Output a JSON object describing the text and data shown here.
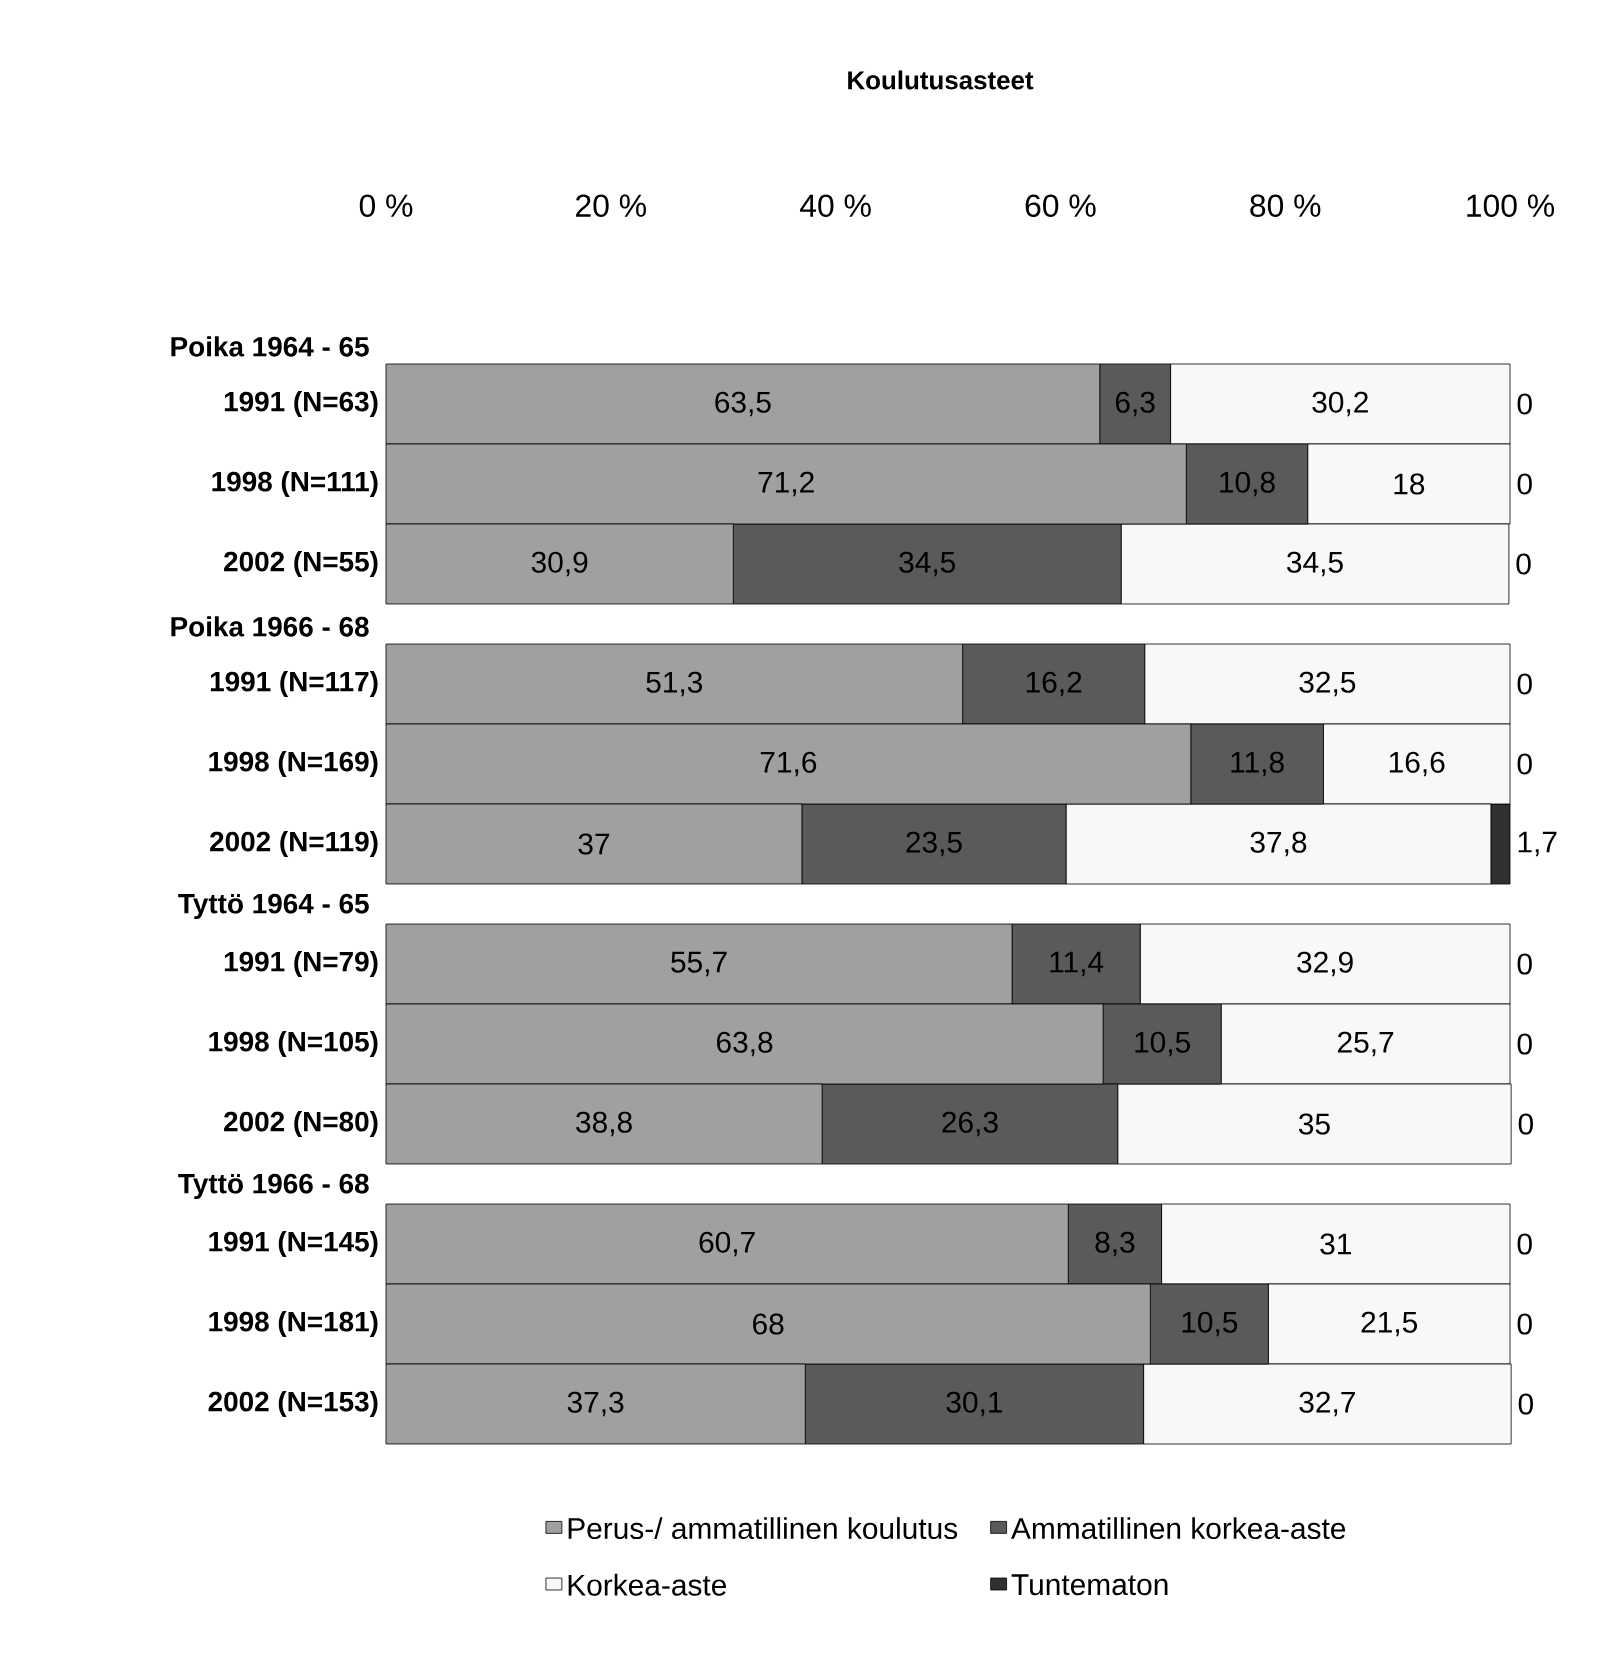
{
  "chart_data": {
    "type": "bar",
    "orientation": "horizontal",
    "stacked": true,
    "title": "Koulutusasteet",
    "categories": [
      "1991 (N=63)",
      "1998 (N=111)",
      "2002 (N=55)",
      "1991 (N=117)",
      "1998 (N=169)",
      "2002 (N=119)",
      "1991 (N=79)",
      "1998 (N=105)",
      "2002 (N=80)",
      "1991 (N=145)",
      "1998 (N=181)",
      "2002 (N=153)"
    ],
    "annotations": [
      "Poika 1964 - 65",
      "Poika 1966 - 68",
      "Tyttö 1964 - 65",
      "Tyttö 1966 - 68"
    ],
    "series": [
      {
        "name": "Perus-/ ammatillinen koulutus",
        "color": "#a0a0a0",
        "values": [
          63.5,
          71.2,
          30.9,
          51.3,
          71.6,
          37,
          55.7,
          63.8,
          38.8,
          60.7,
          68,
          37.3
        ],
        "value_labels": [
          "63,5",
          "71,2",
          "30,9",
          "51,3",
          "71,6",
          "37",
          "55,7",
          "63,8",
          "38,8",
          "60,7",
          "68",
          "37,3"
        ]
      },
      {
        "name": "Ammatillinen korkea-aste",
        "color": "#5a5a5a",
        "values": [
          6.3,
          10.8,
          34.5,
          16.2,
          11.8,
          23.5,
          11.4,
          10.5,
          26.3,
          8.3,
          10.5,
          30.1
        ],
        "value_labels": [
          "6,3",
          "10,8",
          "34,5",
          "16,2",
          "11,8",
          "23,5",
          "11,4",
          "10,5",
          "26,3",
          "8,3",
          "10,5",
          "30,1"
        ]
      },
      {
        "name": "Korkea-aste",
        "color": "#f8f8f8",
        "values": [
          30.2,
          18,
          34.5,
          32.5,
          16.6,
          37.8,
          32.9,
          25.7,
          35,
          31,
          21.5,
          32.7
        ],
        "value_labels": [
          "30,2",
          "18",
          "34,5",
          "32,5",
          "16,6",
          "37,8",
          "32,9",
          "25,7",
          "35",
          "31",
          "21,5",
          "32,7"
        ]
      },
      {
        "name": "Tuntematon",
        "color": "#303030",
        "values": [
          0,
          0,
          0,
          0,
          0,
          1.7,
          0,
          0,
          0,
          0,
          0,
          0
        ],
        "value_labels": [
          "0",
          "0",
          "0",
          "0",
          "0",
          "1,7",
          "0",
          "0",
          "0",
          "0",
          "0",
          "0"
        ]
      }
    ],
    "xlim": [
      0,
      100
    ],
    "xticks": [
      {
        "value": 0,
        "label": "0 %"
      },
      {
        "value": 20,
        "label": "20 %"
      },
      {
        "value": 40,
        "label": "40 %"
      },
      {
        "value": 60,
        "label": "60 %"
      },
      {
        "value": 80,
        "label": "80 %"
      },
      {
        "value": 100,
        "label": "100 %"
      }
    ],
    "legend": "bottom"
  }
}
